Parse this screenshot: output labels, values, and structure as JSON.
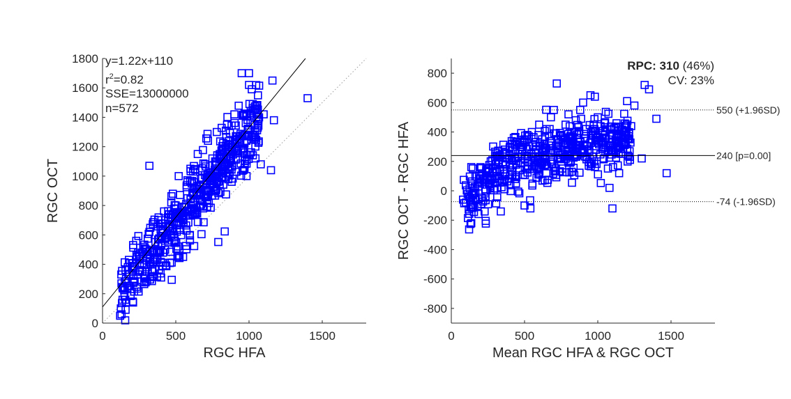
{
  "chart_data": [
    {
      "type": "scatter",
      "xlabel": "RGC HFA",
      "ylabel": "RGC OCT",
      "xlim": [
        0,
        1800
      ],
      "ylim": [
        0,
        1800
      ],
      "xticks": [
        "0",
        "500",
        "1000",
        "1500"
      ],
      "yticks": [
        "0",
        "200",
        "400",
        "600",
        "800",
        "1000",
        "1200",
        "1400",
        "1600",
        "1800"
      ],
      "annotations": {
        "equation": "y=1.22x+110",
        "r2_prefix": "r",
        "r2_sup": "2",
        "r2_value": "=0.82",
        "sse": "SSE=13000000",
        "n": "n=572"
      },
      "fit_line": {
        "slope": 1.22,
        "intercept": 110
      },
      "identity_line": true,
      "marker": "square",
      "marker_color": "#0000ff",
      "n_points": 572,
      "points": [
        [
          120,
          50
        ],
        [
          130,
          60
        ],
        [
          125,
          100
        ],
        [
          150,
          180
        ],
        [
          170,
          240
        ],
        [
          160,
          300
        ],
        [
          180,
          430
        ],
        [
          200,
          380
        ],
        [
          230,
          560
        ],
        [
          250,
          350
        ],
        [
          270,
          480
        ],
        [
          300,
          500
        ],
        [
          320,
          620
        ],
        [
          350,
          430
        ],
        [
          380,
          700
        ],
        [
          400,
          310
        ],
        [
          420,
          760
        ],
        [
          450,
          650
        ],
        [
          480,
          880
        ],
        [
          500,
          800
        ],
        [
          520,
          1000
        ],
        [
          550,
          700
        ],
        [
          580,
          960
        ],
        [
          600,
          1050
        ],
        [
          620,
          880
        ],
        [
          650,
          1150
        ],
        [
          680,
          990
        ],
        [
          700,
          1080
        ],
        [
          720,
          1240
        ],
        [
          750,
          1120
        ],
        [
          780,
          1300
        ],
        [
          800,
          1150
        ],
        [
          820,
          1050
        ],
        [
          850,
          1350
        ],
        [
          880,
          1200
        ],
        [
          900,
          1420
        ],
        [
          920,
          1250
        ],
        [
          950,
          1700
        ],
        [
          1000,
          1700
        ],
        [
          1000,
          1620
        ],
        [
          1050,
          1480
        ],
        [
          1060,
          1330
        ],
        [
          1080,
          1080
        ],
        [
          1100,
          1420
        ],
        [
          1150,
          1040
        ],
        [
          1160,
          1650
        ],
        [
          1170,
          1380
        ],
        [
          1400,
          1530
        ],
        [
          320,
          1070
        ],
        [
          550,
          450
        ]
      ]
    },
    {
      "type": "scatter",
      "xlabel": "Mean RGC HFA & RGC OCT",
      "ylabel": "RGC OCT - RGC HFA",
      "xlim": [
        0,
        1800
      ],
      "ylim": [
        -900,
        900
      ],
      "xticks": [
        "0",
        "500",
        "1000",
        "1500"
      ],
      "yticks": [
        "-800",
        "-600",
        "-400",
        "-200",
        "0",
        "200",
        "400",
        "600",
        "800"
      ],
      "rpc_label": "RPC:",
      "rpc_value": "310",
      "rpc_pct": "(46%)",
      "cv": "CV: 23%",
      "mean_line": {
        "value": 240,
        "label": "240 [p=0.00]"
      },
      "upper_loa": {
        "value": 550,
        "label": "550 (+1.96SD)"
      },
      "lower_loa": {
        "value": -74,
        "label": "-74 (-1.96SD)"
      },
      "marker": "square",
      "marker_color": "#0000ff",
      "n_points": 572,
      "points": [
        [
          80,
          -60
        ],
        [
          100,
          -80
        ],
        [
          120,
          -40
        ],
        [
          150,
          0
        ],
        [
          180,
          50
        ],
        [
          200,
          100
        ],
        [
          220,
          80
        ],
        [
          250,
          150
        ],
        [
          280,
          120
        ],
        [
          300,
          200
        ],
        [
          320,
          180
        ],
        [
          350,
          250
        ],
        [
          380,
          220
        ],
        [
          400,
          300
        ],
        [
          420,
          280
        ],
        [
          450,
          330
        ],
        [
          480,
          250
        ],
        [
          500,
          350
        ],
        [
          520,
          200
        ],
        [
          550,
          400
        ],
        [
          580,
          300
        ],
        [
          600,
          450
        ],
        [
          620,
          350
        ],
        [
          650,
          420
        ],
        [
          680,
          500
        ],
        [
          700,
          550
        ],
        [
          720,
          730
        ],
        [
          750,
          380
        ],
        [
          780,
          450
        ],
        [
          800,
          520
        ],
        [
          820,
          400
        ],
        [
          850,
          480
        ],
        [
          880,
          550
        ],
        [
          900,
          600
        ],
        [
          920,
          420
        ],
        [
          950,
          650
        ],
        [
          980,
          640
        ],
        [
          1000,
          500
        ],
        [
          1050,
          400
        ],
        [
          1080,
          20
        ],
        [
          1100,
          -120
        ],
        [
          1150,
          300
        ],
        [
          1200,
          610
        ],
        [
          1250,
          580
        ],
        [
          1300,
          220
        ],
        [
          1320,
          720
        ],
        [
          1350,
          690
        ],
        [
          1400,
          490
        ],
        [
          1470,
          120
        ],
        [
          500,
          -100
        ],
        [
          540,
          -120
        ]
      ]
    }
  ]
}
